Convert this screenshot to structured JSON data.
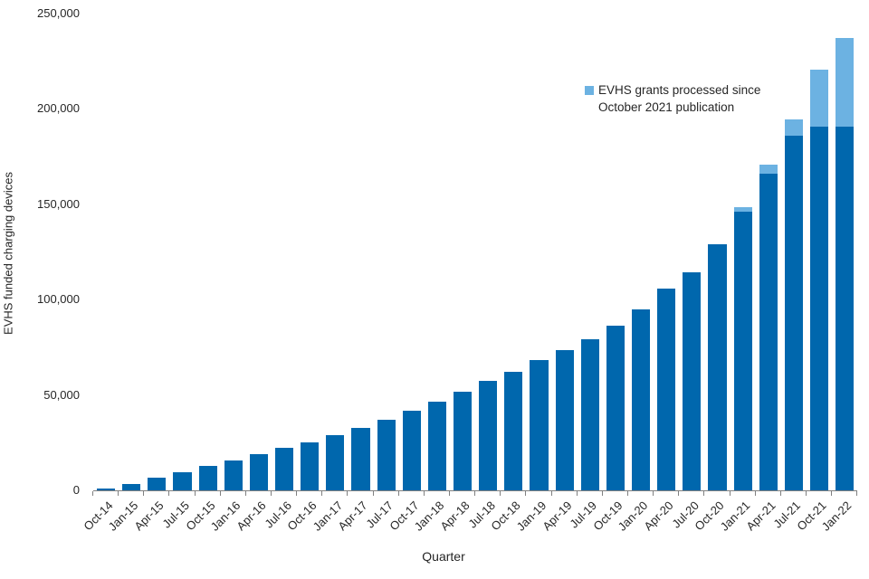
{
  "figure": {
    "background": "#ffffff"
  },
  "axes": {
    "ylabel": "EVHS funded charging devices",
    "xlabel": "Quarter"
  },
  "legend": {
    "line1": "EVHS grants processed since",
    "line2": "October 2021 publication",
    "swatch_color": "#6cb2e2"
  },
  "colors": {
    "bar_dark_blue": "#0067ad",
    "bar_light_blue": "#6cb2e2",
    "axis_line": "#808080",
    "text": "#262626"
  },
  "chart_data": {
    "type": "bar",
    "stacked": true,
    "title": "",
    "xlabel": "Quarter",
    "ylabel": "EVHS funded charging devices",
    "ylim": [
      0,
      250000
    ],
    "grid": false,
    "legend_position": "upper-right-inside",
    "ytick_values": [
      0,
      50000,
      100000,
      150000,
      200000,
      250000
    ],
    "ytick_labels": [
      "0",
      "50,000",
      "100,000",
      "150,000",
      "200,000",
      "250,000"
    ],
    "categories": [
      "Oct-14",
      "Jan-15",
      "Apr-15",
      "Jul-15",
      "Oct-15",
      "Jan-16",
      "Apr-16",
      "Jul-16",
      "Oct-16",
      "Jan-17",
      "Apr-17",
      "Jul-17",
      "Oct-17",
      "Jan-18",
      "Apr-18",
      "Jul-18",
      "Oct-18",
      "Jan-19",
      "Apr-19",
      "Jul-19",
      "Oct-19",
      "Jan-20",
      "Apr-20",
      "Jul-20",
      "Oct-20",
      "Jan-21",
      "Apr-21",
      "Jul-21",
      "Oct-21",
      "Jan-22"
    ],
    "series": [
      {
        "name": "",
        "color": "#0067ad",
        "values": [
          1000,
          3200,
          6600,
          9700,
          12600,
          15600,
          19200,
          22500,
          25100,
          28800,
          32800,
          37200,
          41900,
          46700,
          51800,
          57300,
          62300,
          68500,
          73400,
          79300,
          86400,
          95000,
          106000,
          114100,
          128900,
          146200,
          165900,
          186100,
          190500,
          190500
        ]
      },
      {
        "name": "EVHS grants processed since October 2021 publication",
        "color": "#6cb2e2",
        "values": [
          0,
          0,
          0,
          0,
          0,
          0,
          0,
          0,
          0,
          0,
          0,
          0,
          0,
          0,
          0,
          0,
          0,
          0,
          0,
          0,
          0,
          0,
          0,
          0,
          0,
          2400,
          4800,
          8600,
          29900,
          46700
        ]
      }
    ],
    "totals": [
      1000,
      3200,
      6600,
      9700,
      12600,
      15600,
      19200,
      22500,
      25100,
      28800,
      32800,
      37200,
      41900,
      46700,
      51800,
      57300,
      62300,
      68500,
      73400,
      79300,
      86400,
      95000,
      106000,
      114100,
      128900,
      148600,
      170700,
      194700,
      220400,
      237200
    ]
  }
}
